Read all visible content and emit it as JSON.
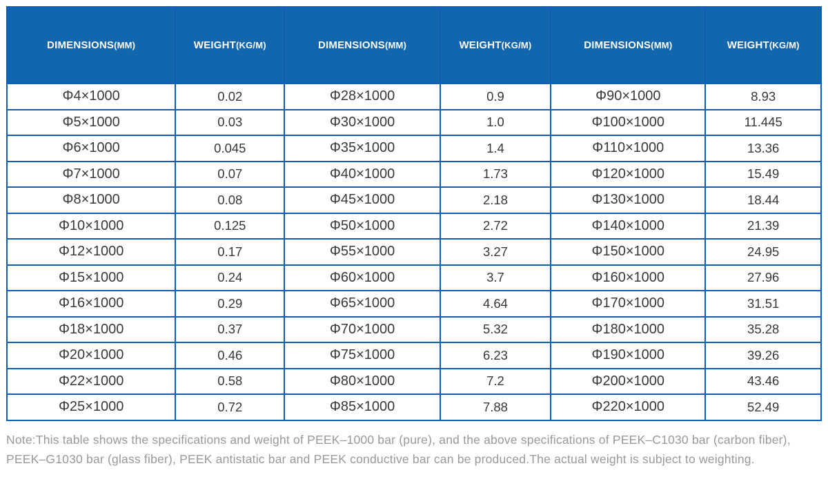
{
  "table": {
    "header": {
      "columns": [
        {
          "label": "DIMENSIONS",
          "unit": "(MM)"
        },
        {
          "label": "WEIGHT",
          "unit": "(KG/M)"
        },
        {
          "label": "DIMENSIONS",
          "unit": "(MM)"
        },
        {
          "label": "WEIGHT",
          "unit": "(KG/M)"
        },
        {
          "label": "DIMENSIONS",
          "unit": "(MM)"
        },
        {
          "label": "WEIGHT",
          "unit": "(KG/M)"
        }
      ]
    },
    "rows": [
      [
        "Φ4×1000",
        "0.02",
        "Φ28×1000",
        "0.9",
        "Φ90×1000",
        "8.93"
      ],
      [
        "Φ5×1000",
        "0.03",
        "Φ30×1000",
        "1.0",
        "Φ100×1000",
        "11.445"
      ],
      [
        "Φ6×1000",
        "0.045",
        "Φ35×1000",
        "1.4",
        "Φ110×1000",
        "13.36"
      ],
      [
        "Φ7×1000",
        "0.07",
        "Φ40×1000",
        "1.73",
        "Φ120×1000",
        "15.49"
      ],
      [
        "Φ8×1000",
        "0.08",
        "Φ45×1000",
        "2.18",
        "Φ130×1000",
        "18.44"
      ],
      [
        "Φ10×1000",
        "0.125",
        "Φ50×1000",
        "2.72",
        "Φ140×1000",
        "21.39"
      ],
      [
        "Φ12×1000",
        "0.17",
        "Φ55×1000",
        "3.27",
        "Φ150×1000",
        "24.95"
      ],
      [
        "Φ15×1000",
        "0.24",
        "Φ60×1000",
        "3.7",
        "Φ160×1000",
        "27.96"
      ],
      [
        "Φ16×1000",
        "0.29",
        "Φ65×1000",
        "4.64",
        "Φ170×1000",
        "31.51"
      ],
      [
        "Φ18×1000",
        "0.37",
        "Φ70×1000",
        "5.32",
        "Φ180×1000",
        "35.28"
      ],
      [
        "Φ20×1000",
        "0.46",
        "Φ75×1000",
        "6.23",
        "Φ190×1000",
        "39.26"
      ],
      [
        "Φ22×1000",
        "0.58",
        "Φ80×1000",
        "7.2",
        "Φ200×1000",
        "43.46"
      ],
      [
        "Φ25×1000",
        "0.72",
        "Φ85×1000",
        "7.88",
        "Φ220×1000",
        "52.49"
      ]
    ]
  },
  "note": {
    "line1": "Note:This table shows the specifications and weight of PEEK–1000 bar (pure), and the above specifications of PEEK–C1030 bar (carbon fiber),",
    "line2": "PEEK–G1030 bar (glass fiber), PEEK antistatic bar and PEEK conductive bar can be produced.The actual weight is subject to weighting."
  },
  "colors": {
    "header_background": "#1166ad",
    "header_text": "#ffffff",
    "header_divider": "#0b4e95",
    "grid_border": "#0f5cb4",
    "cell_text": "#383838",
    "note_text": "#999999"
  }
}
